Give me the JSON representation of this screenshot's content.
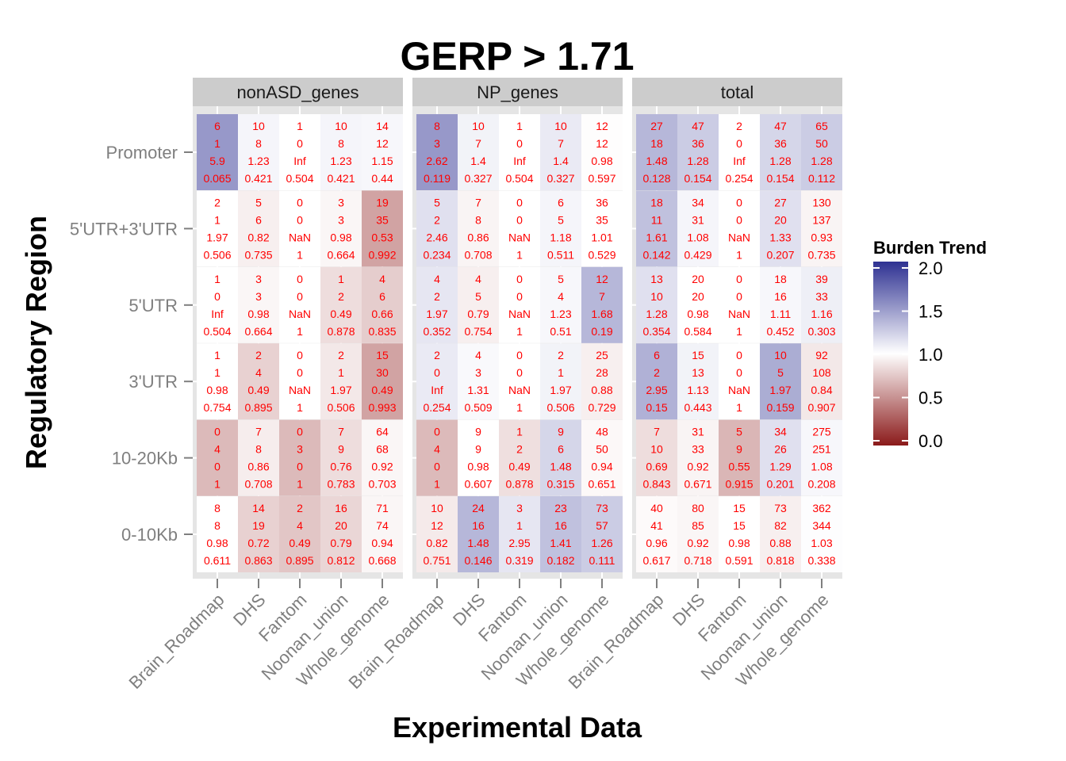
{
  "chart_data": {
    "type": "heatmap",
    "title": "GERP > 1.71",
    "xlabel": "Experimental Data",
    "ylabel": "Regulatory Region",
    "facets": [
      "nonASD_genes",
      "NP_genes",
      "total"
    ],
    "categories_x": [
      "Brain_Roadmap",
      "DHS",
      "Fantom",
      "Noonan_union",
      "Whole_genome"
    ],
    "categories_y": [
      "Promoter",
      "5'UTR+3'UTR",
      "5'UTR",
      "3'UTR",
      "10-20Kb",
      "0-10Kb"
    ],
    "legend": {
      "title": "Burden Trend",
      "ticks": [
        "2.0",
        "1.5",
        "1.0",
        "0.5",
        "0.0"
      ],
      "range": [
        0,
        2
      ],
      "low_color": "#8b1a1a",
      "mid_color": "#ffffff",
      "high_color": "#2e3192"
    },
    "cells": [
      [
        [
          [
            "6",
            "1",
            "5.9",
            "0.065"
          ],
          [
            "10",
            "8",
            "1.23",
            "0.421"
          ],
          [
            "1",
            "0",
            "Inf",
            "0.504"
          ],
          [
            "10",
            "8",
            "1.23",
            "0.421"
          ],
          [
            "14",
            "12",
            "1.15",
            "0.44"
          ]
        ],
        [
          [
            "2",
            "1",
            "1.97",
            "0.506"
          ],
          [
            "5",
            "6",
            "0.82",
            "0.735"
          ],
          [
            "0",
            "0",
            "NaN",
            "1"
          ],
          [
            "3",
            "3",
            "0.98",
            "0.664"
          ],
          [
            "19",
            "35",
            "0.53",
            "0.992"
          ]
        ],
        [
          [
            "1",
            "0",
            "Inf",
            "0.504"
          ],
          [
            "3",
            "3",
            "0.98",
            "0.664"
          ],
          [
            "0",
            "0",
            "NaN",
            "1"
          ],
          [
            "1",
            "2",
            "0.49",
            "0.878"
          ],
          [
            "4",
            "6",
            "0.66",
            "0.835"
          ]
        ],
        [
          [
            "1",
            "1",
            "0.98",
            "0.754"
          ],
          [
            "2",
            "4",
            "0.49",
            "0.895"
          ],
          [
            "0",
            "0",
            "NaN",
            "1"
          ],
          [
            "2",
            "1",
            "1.97",
            "0.506"
          ],
          [
            "15",
            "30",
            "0.49",
            "0.993"
          ]
        ],
        [
          [
            "0",
            "4",
            "0",
            "1"
          ],
          [
            "7",
            "8",
            "0.86",
            "0.708"
          ],
          [
            "0",
            "3",
            "0",
            "1"
          ],
          [
            "7",
            "9",
            "0.76",
            "0.783"
          ],
          [
            "64",
            "68",
            "0.92",
            "0.703"
          ]
        ],
        [
          [
            "8",
            "8",
            "0.98",
            "0.611"
          ],
          [
            "14",
            "19",
            "0.72",
            "0.863"
          ],
          [
            "2",
            "4",
            "0.49",
            "0.895"
          ],
          [
            "16",
            "20",
            "0.79",
            "0.812"
          ],
          [
            "71",
            "74",
            "0.94",
            "0.668"
          ]
        ]
      ],
      [
        [
          [
            "8",
            "3",
            "2.62",
            "0.119"
          ],
          [
            "10",
            "7",
            "1.4",
            "0.327"
          ],
          [
            "1",
            "0",
            "Inf",
            "0.504"
          ],
          [
            "10",
            "7",
            "1.4",
            "0.327"
          ],
          [
            "12",
            "12",
            "0.98",
            "0.597"
          ]
        ],
        [
          [
            "5",
            "2",
            "2.46",
            "0.234"
          ],
          [
            "7",
            "8",
            "0.86",
            "0.708"
          ],
          [
            "0",
            "0",
            "NaN",
            "1"
          ],
          [
            "6",
            "5",
            "1.18",
            "0.511"
          ],
          [
            "36",
            "35",
            "1.01",
            "0.529"
          ]
        ],
        [
          [
            "4",
            "2",
            "1.97",
            "0.352"
          ],
          [
            "4",
            "5",
            "0.79",
            "0.754"
          ],
          [
            "0",
            "0",
            "NaN",
            "1"
          ],
          [
            "5",
            "4",
            "1.23",
            "0.51"
          ],
          [
            "12",
            "7",
            "1.68",
            "0.19"
          ]
        ],
        [
          [
            "2",
            "0",
            "Inf",
            "0.254"
          ],
          [
            "4",
            "3",
            "1.31",
            "0.509"
          ],
          [
            "0",
            "0",
            "NaN",
            "1"
          ],
          [
            "2",
            "1",
            "1.97",
            "0.506"
          ],
          [
            "25",
            "28",
            "0.88",
            "0.729"
          ]
        ],
        [
          [
            "0",
            "4",
            "0",
            "1"
          ],
          [
            "9",
            "9",
            "0.98",
            "0.607"
          ],
          [
            "1",
            "2",
            "0.49",
            "0.878"
          ],
          [
            "9",
            "6",
            "1.48",
            "0.315"
          ],
          [
            "48",
            "50",
            "0.94",
            "0.651"
          ]
        ],
        [
          [
            "10",
            "12",
            "0.82",
            "0.751"
          ],
          [
            "24",
            "16",
            "1.48",
            "0.146"
          ],
          [
            "3",
            "1",
            "2.95",
            "0.319"
          ],
          [
            "23",
            "16",
            "1.41",
            "0.182"
          ],
          [
            "73",
            "57",
            "1.26",
            "0.111"
          ]
        ]
      ],
      [
        [
          [
            "27",
            "18",
            "1.48",
            "0.128"
          ],
          [
            "47",
            "36",
            "1.28",
            "0.154"
          ],
          [
            "2",
            "0",
            "Inf",
            "0.254"
          ],
          [
            "47",
            "36",
            "1.28",
            "0.154"
          ],
          [
            "65",
            "50",
            "1.28",
            "0.112"
          ]
        ],
        [
          [
            "18",
            "11",
            "1.61",
            "0.142"
          ],
          [
            "34",
            "31",
            "1.08",
            "0.429"
          ],
          [
            "0",
            "0",
            "NaN",
            "1"
          ],
          [
            "27",
            "20",
            "1.33",
            "0.207"
          ],
          [
            "130",
            "137",
            "0.93",
            "0.735"
          ]
        ],
        [
          [
            "13",
            "10",
            "1.28",
            "0.354"
          ],
          [
            "20",
            "20",
            "0.98",
            "0.584"
          ],
          [
            "0",
            "0",
            "NaN",
            "1"
          ],
          [
            "18",
            "16",
            "1.11",
            "0.452"
          ],
          [
            "39",
            "33",
            "1.16",
            "0.303"
          ]
        ],
        [
          [
            "6",
            "2",
            "2.95",
            "0.15"
          ],
          [
            "15",
            "13",
            "1.13",
            "0.443"
          ],
          [
            "0",
            "0",
            "NaN",
            "1"
          ],
          [
            "10",
            "5",
            "1.97",
            "0.159"
          ],
          [
            "92",
            "108",
            "0.84",
            "0.907"
          ]
        ],
        [
          [
            "7",
            "10",
            "0.69",
            "0.843"
          ],
          [
            "31",
            "33",
            "0.92",
            "0.671"
          ],
          [
            "5",
            "9",
            "0.55",
            "0.915"
          ],
          [
            "34",
            "26",
            "1.29",
            "0.201"
          ],
          [
            "275",
            "251",
            "1.08",
            "0.208"
          ]
        ],
        [
          [
            "40",
            "41",
            "0.96",
            "0.617"
          ],
          [
            "80",
            "85",
            "0.92",
            "0.718"
          ],
          [
            "15",
            "15",
            "0.98",
            "0.591"
          ],
          [
            "73",
            "82",
            "0.88",
            "0.818"
          ],
          [
            "362",
            "344",
            "1.03",
            "0.338"
          ]
        ]
      ]
    ],
    "fill_values": [
      [
        [
          1.5,
          1.05,
          1.0,
          1.05,
          1.04
        ],
        [
          1.0,
          0.93,
          1.0,
          0.96,
          0.6
        ],
        [
          1.0,
          0.96,
          1.0,
          0.85,
          0.78
        ],
        [
          1.0,
          0.8,
          1.0,
          0.9,
          0.6
        ],
        [
          0.7,
          0.92,
          0.7,
          0.85,
          0.96
        ],
        [
          1.0,
          0.8,
          0.75,
          0.82,
          0.96
        ]
      ],
      [
        [
          1.5,
          1.06,
          1.0,
          1.1,
          0.99
        ],
        [
          1.15,
          0.95,
          1.0,
          1.05,
          1.0
        ],
        [
          1.12,
          0.93,
          1.0,
          1.04,
          1.35
        ],
        [
          1.1,
          1.03,
          1.0,
          1.06,
          0.93
        ],
        [
          0.7,
          1.0,
          0.86,
          1.2,
          0.97
        ],
        [
          0.91,
          1.35,
          1.12,
          1.3,
          1.25
        ]
      ],
      [
        [
          1.35,
          1.25,
          1.0,
          1.2,
          1.25
        ],
        [
          1.3,
          1.05,
          1.0,
          1.15,
          0.95
        ],
        [
          1.15,
          1.0,
          1.0,
          1.04,
          1.08
        ],
        [
          1.38,
          1.06,
          1.0,
          1.4,
          0.9
        ],
        [
          0.85,
          0.95,
          0.68,
          1.15,
          1.04
        ],
        [
          0.98,
          0.96,
          1.0,
          0.93,
          1.01
        ]
      ]
    ]
  }
}
